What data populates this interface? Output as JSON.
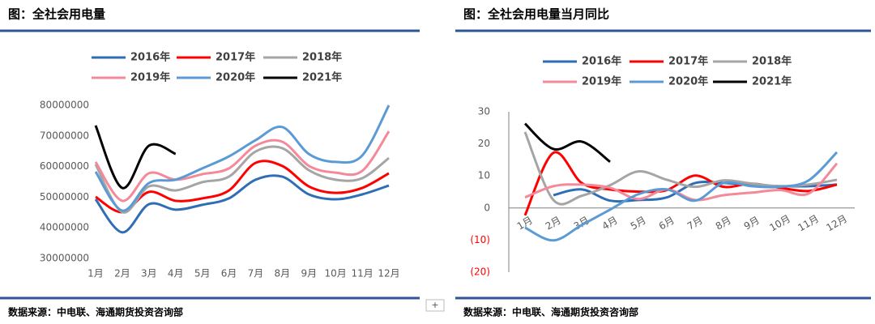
{
  "chart_data": [
    {
      "type": "line",
      "title": "图：全社会用电量",
      "source": "数据来源：中电联、海通期货投资咨询部",
      "categories": [
        "1月",
        "2月",
        "3月",
        "4月",
        "5月",
        "6月",
        "7月",
        "8月",
        "9月",
        "10月",
        "11月",
        "12月"
      ],
      "ylim": [
        30000000,
        80000000
      ],
      "yticks": [
        30000000,
        40000000,
        50000000,
        60000000,
        70000000,
        80000000
      ],
      "series": [
        {
          "name": "2016年",
          "color": "#2f6eb5",
          "values": [
            49300000,
            38500000,
            47700000,
            45900000,
            47500000,
            49600000,
            55700000,
            56700000,
            50900000,
            49300000,
            50900000,
            53800000
          ]
        },
        {
          "name": "2017年",
          "color": "#ff0000",
          "values": [
            50100000,
            45100000,
            51700000,
            48800000,
            49600000,
            52200000,
            61200000,
            60200000,
            53500000,
            51400000,
            53000000,
            57800000
          ]
        },
        {
          "name": "2018年",
          "color": "#a5a5a5",
          "values": [
            60700000,
            45100000,
            53500000,
            52200000,
            54900000,
            56700000,
            64900000,
            66000000,
            58800000,
            55700000,
            56200000,
            62800000
          ]
        },
        {
          "name": "2019年",
          "color": "#f4899a",
          "values": [
            61500000,
            48800000,
            57800000,
            55700000,
            57500000,
            59400000,
            66800000,
            68100000,
            60200000,
            58000000,
            58600000,
            71500000
          ]
        },
        {
          "name": "2020年",
          "color": "#5b9bd5",
          "values": [
            58300000,
            45600000,
            54600000,
            55700000,
            59400000,
            63300000,
            68600000,
            72900000,
            64100000,
            61500000,
            63600000,
            80000000
          ]
        },
        {
          "name": "2021年",
          "color": "#000000",
          "values": [
            73400000,
            53000000,
            66800000,
            64100000,
            null,
            null,
            null,
            null,
            null,
            null,
            null,
            null
          ]
        }
      ]
    },
    {
      "type": "line",
      "title": "图：全社会用电量当月同比",
      "source": "数据来源：中电联、海通期货投资咨询部",
      "categories": [
        "1月",
        "2月",
        "3月",
        "4月",
        "5月",
        "6月",
        "7月",
        "8月",
        "9月",
        "10月",
        "11月",
        "12月"
      ],
      "ylim": [
        -20,
        30
      ],
      "yticks": [
        30,
        20,
        10,
        0,
        {
          "value": -10,
          "label": "(10)"
        },
        {
          "value": -20,
          "label": "(20)"
        }
      ],
      "negative_tick_color": "#ff0000",
      "series": [
        {
          "name": "2016年",
          "color": "#2f6eb5",
          "values": [
            null,
            4,
            5.8,
            2.3,
            2.5,
            3.3,
            7.8,
            7.8,
            7.1,
            6.8,
            6.8,
            7.3
          ]
        },
        {
          "name": "2017年",
          "color": "#ff0000",
          "values": [
            -2.3,
            17.2,
            7.8,
            5.8,
            5.1,
            5.6,
            10.1,
            6.6,
            7.6,
            6.3,
            5.3,
            7.3
          ]
        },
        {
          "name": "2018年",
          "color": "#a5a5a5",
          "values": [
            23.7,
            2.5,
            3.8,
            7.1,
            11.4,
            8.8,
            6.6,
            8.6,
            7.6,
            6.8,
            7.3,
            8.8
          ]
        },
        {
          "name": "2019年",
          "color": "#f4899a",
          "values": [
            3.3,
            6.8,
            7.3,
            6.3,
            2.8,
            5.8,
            2.5,
            4,
            4.8,
            5.6,
            4.5,
            13.9
          ]
        },
        {
          "name": "2020年",
          "color": "#5b9bd5",
          "values": [
            -6.1,
            -10.1,
            -5.3,
            -0.5,
            4.3,
            5.8,
            2.3,
            7.8,
            6.8,
            6.6,
            8.6,
            17.4
          ]
        },
        {
          "name": "2021年",
          "color": "#000000",
          "values": [
            26.3,
            18.4,
            20.7,
            14.4,
            null,
            null,
            null,
            null,
            null,
            null,
            null,
            null
          ]
        }
      ]
    }
  ]
}
